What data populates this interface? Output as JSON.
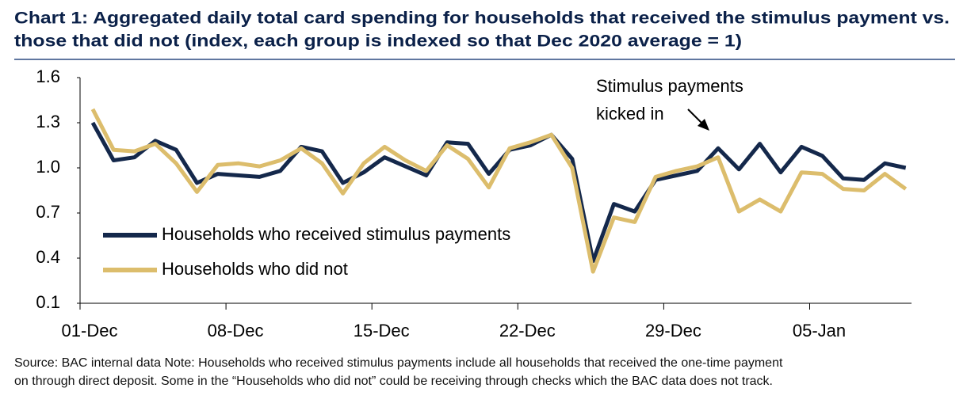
{
  "chart_data": {
    "type": "line",
    "title": [
      "Chart 1: Aggregated daily total card spending for households that received the stimulus payment vs.",
      "those that did not (index, each group is indexed so that Dec 2020 average = 1)"
    ],
    "annotation": [
      "Stimulus payments",
      "kicked in"
    ],
    "footnote": [
      "Source: BAC internal data  Note: Households who received stimulus payments include all households that received the one-time payment",
      "on through direct deposit. Some in the “Households who did not” could be receiving through checks which the BAC data does not track."
    ],
    "categories": [
      "01-Dec",
      null,
      null,
      null,
      null,
      null,
      null,
      "08-Dec",
      null,
      null,
      null,
      null,
      null,
      null,
      "15-Dec",
      null,
      null,
      null,
      null,
      null,
      null,
      "22-Dec",
      null,
      null,
      null,
      null,
      null,
      null,
      "29-Dec",
      null,
      null,
      null,
      null,
      null,
      null,
      "05-Jan",
      null,
      null,
      null,
      null
    ],
    "series": [
      {
        "name": "Households who received stimulus payments",
        "color": "#14284b",
        "values": [
          1.3,
          1.05,
          1.07,
          1.18,
          1.12,
          0.9,
          0.96,
          0.95,
          0.94,
          0.98,
          1.14,
          1.11,
          0.9,
          0.97,
          1.07,
          1.01,
          0.95,
          1.17,
          1.16,
          0.96,
          1.12,
          1.15,
          1.22,
          1.06,
          0.38,
          0.76,
          0.71,
          0.92,
          0.95,
          0.98,
          1.13,
          0.99,
          1.16,
          0.97,
          1.14,
          1.08,
          0.93,
          0.92,
          1.03,
          1.0
        ]
      },
      {
        "name": "Households who did not",
        "color": "#dcbd6c",
        "values": [
          1.39,
          1.12,
          1.11,
          1.16,
          1.03,
          0.84,
          1.02,
          1.03,
          1.01,
          1.05,
          1.13,
          1.03,
          0.83,
          1.03,
          1.14,
          1.05,
          0.98,
          1.15,
          1.06,
          0.87,
          1.13,
          1.17,
          1.22,
          1.0,
          0.31,
          0.67,
          0.64,
          0.94,
          0.98,
          1.01,
          1.07,
          0.71,
          0.79,
          0.71,
          0.97,
          0.96,
          0.86,
          0.85,
          0.96,
          0.86
        ]
      }
    ],
    "ylim": [
      0.1,
      1.6
    ],
    "yticks": [
      0.1,
      0.4,
      0.7,
      {
        "value": 1,
        "label": "1.0"
      },
      1.3,
      1.6
    ],
    "legend": "lower left"
  }
}
